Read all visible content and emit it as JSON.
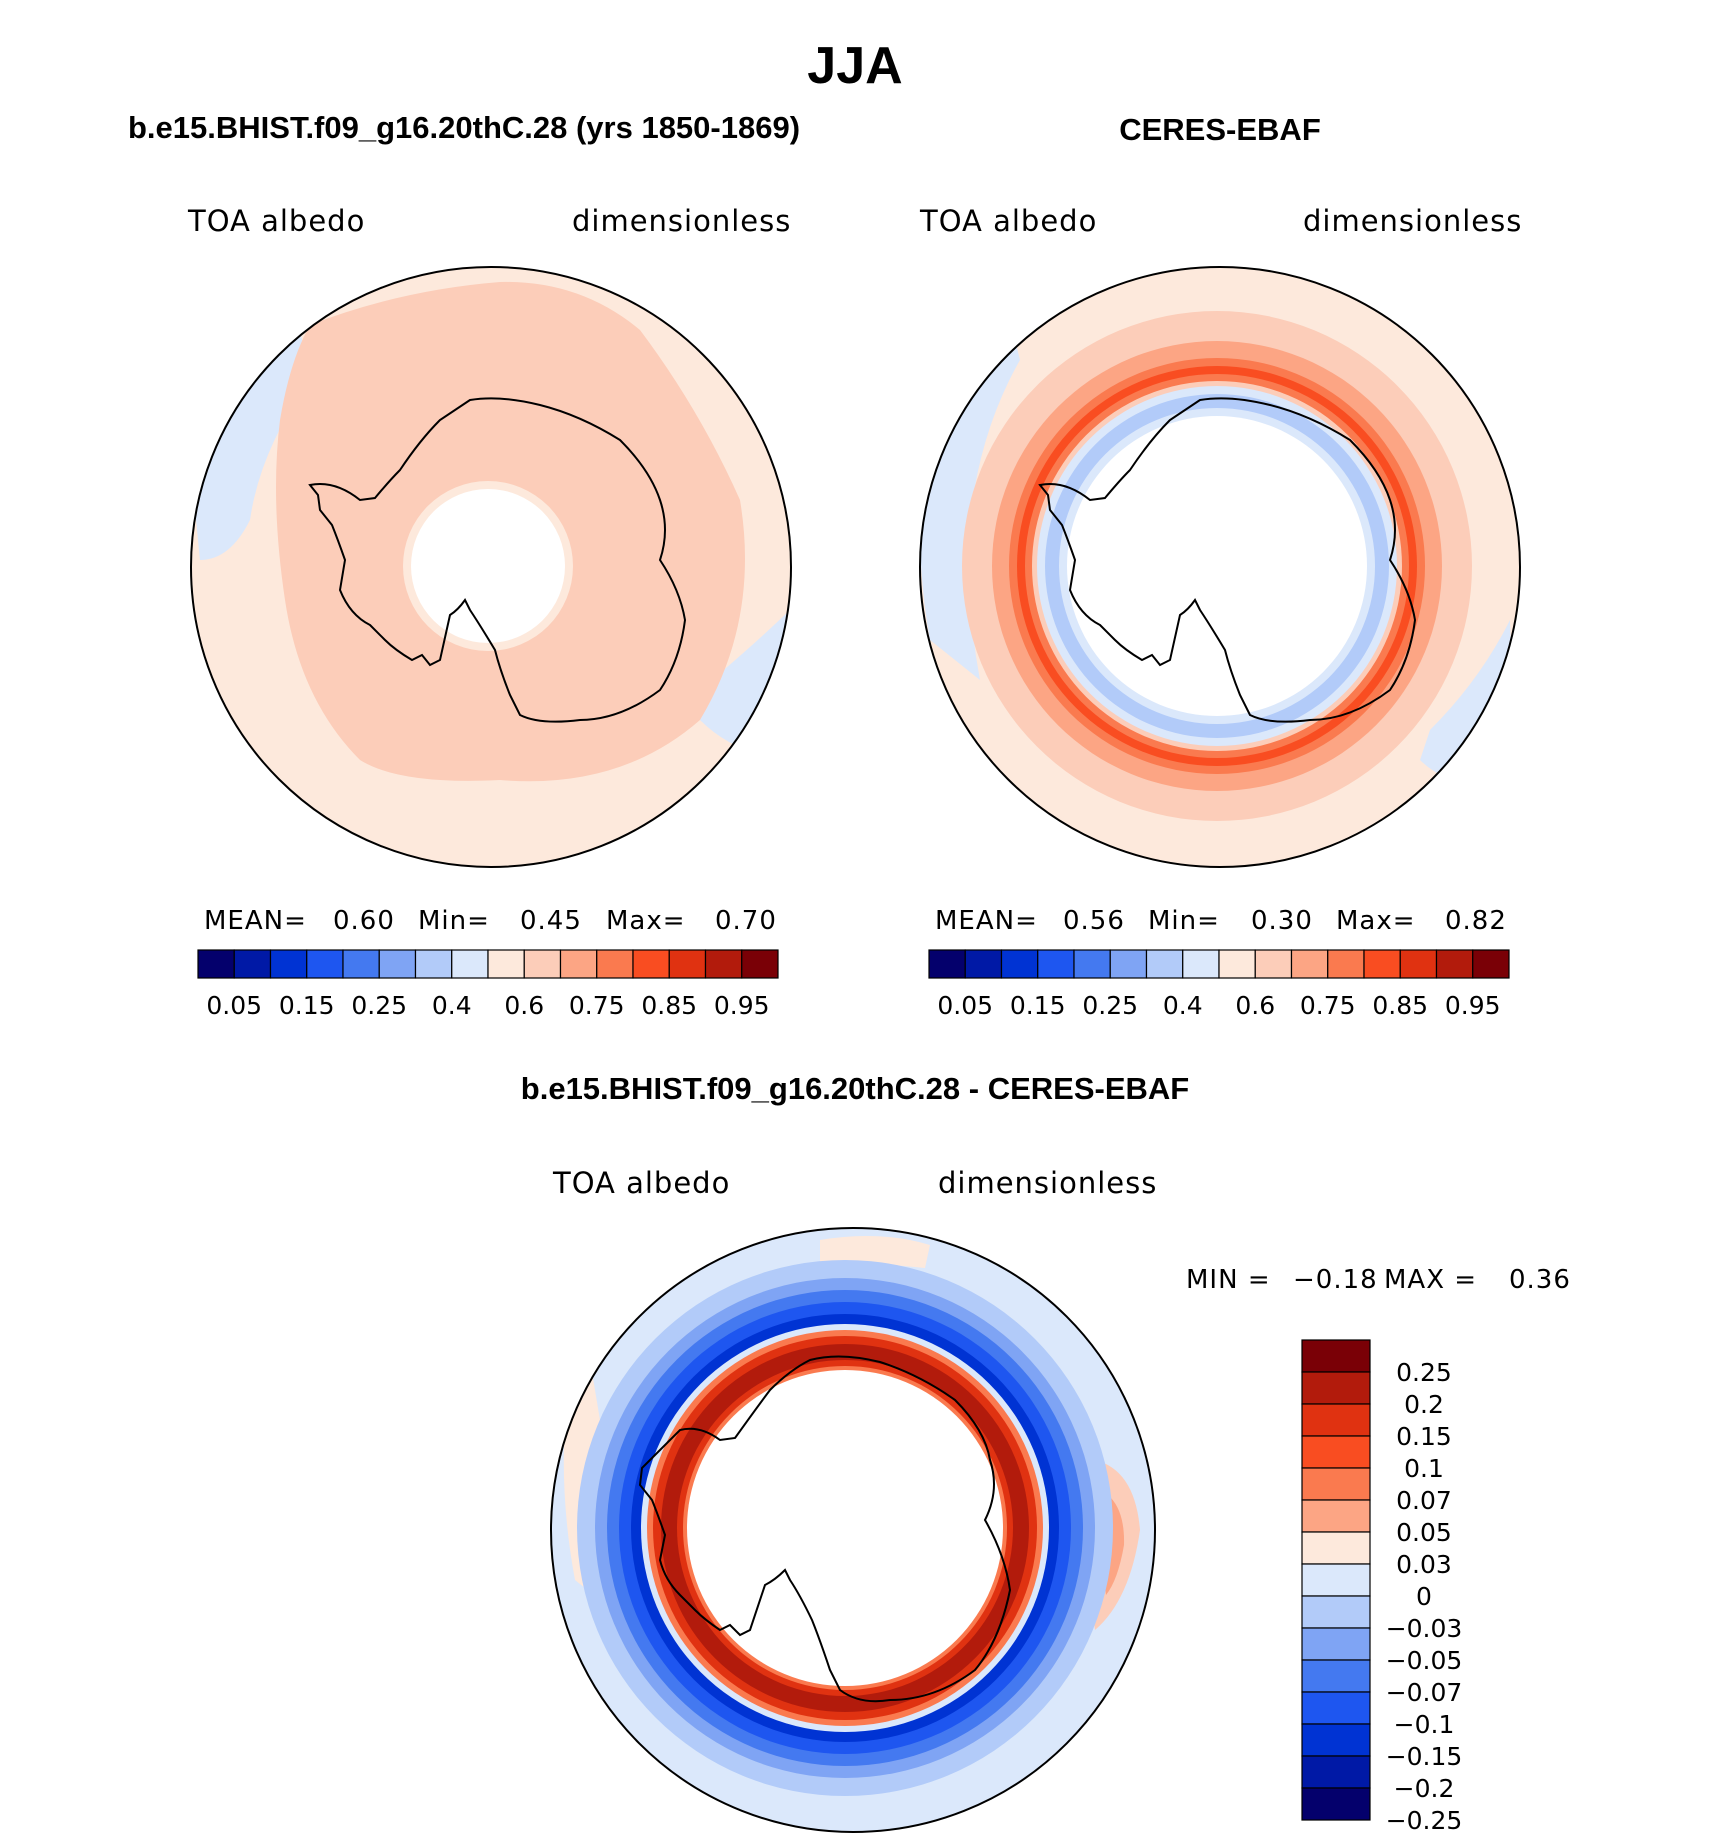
{
  "main_title": "JJA",
  "colors": {
    "label_bar_top": [
      "#04006c",
      "#0019a6",
      "#0033d3",
      "#1e56f0",
      "#4479f0",
      "#7fa4f4",
      "#b2cbf9",
      "#dbe8fb",
      "#fde9dc",
      "#fccdb9",
      "#fca584",
      "#fa7a4f",
      "#f94d21",
      "#e03211",
      "#b21b0c",
      "#7a0006"
    ],
    "label_bar_diff": [
      "#7a0006",
      "#b21b0c",
      "#e03211",
      "#f94d21",
      "#fa7a4f",
      "#fca584",
      "#fde9dc",
      "#dbe8fb",
      "#b2cbf9",
      "#7fa4f4",
      "#4479f0",
      "#1e56f0",
      "#0033d3",
      "#0019a6",
      "#04006c"
    ]
  },
  "chart_data": [
    {
      "type": "heatmap",
      "projection": "south-polar-stereographic",
      "title": "b.e15.BHIST.f09_g16.20thC.28 (yrs 1850-1869)",
      "variable": "TOA albedo",
      "units": "dimensionless",
      "stats": {
        "mean_label": "MEAN=",
        "mean": "0.60",
        "min_label": "Min=",
        "min": "0.45",
        "max_label": "Max=",
        "max": "0.70"
      },
      "colorbar_ticks": [
        "0.05",
        "0.15",
        "0.25",
        "0.4",
        "0.6",
        "0.75",
        "0.85",
        "0.95"
      ]
    },
    {
      "type": "heatmap",
      "projection": "south-polar-stereographic",
      "title": "CERES-EBAF",
      "variable": "TOA albedo",
      "units": "dimensionless",
      "stats": {
        "mean_label": "MEAN=",
        "mean": "0.56",
        "min_label": "Min=",
        "min": "0.30",
        "max_label": "Max=",
        "max": "0.82"
      },
      "colorbar_ticks": [
        "0.05",
        "0.15",
        "0.25",
        "0.4",
        "0.6",
        "0.75",
        "0.85",
        "0.95"
      ]
    },
    {
      "type": "heatmap",
      "projection": "south-polar-stereographic",
      "title": "b.e15.BHIST.f09_g16.20thC.28 - CERES-EBAF",
      "variable": "TOA albedo",
      "units": "dimensionless",
      "stats": {
        "min_label": "MIN =",
        "min": "−0.18",
        "max_label": "MAX =",
        "max": "0.36"
      },
      "colorbar_ticks": [
        "0.25",
        "0.2",
        "0.15",
        "0.1",
        "0.07",
        "0.05",
        "0.03",
        "0",
        "−0.03",
        "−0.05",
        "−0.07",
        "−0.1",
        "−0.15",
        "−0.2",
        "−0.25"
      ]
    }
  ]
}
